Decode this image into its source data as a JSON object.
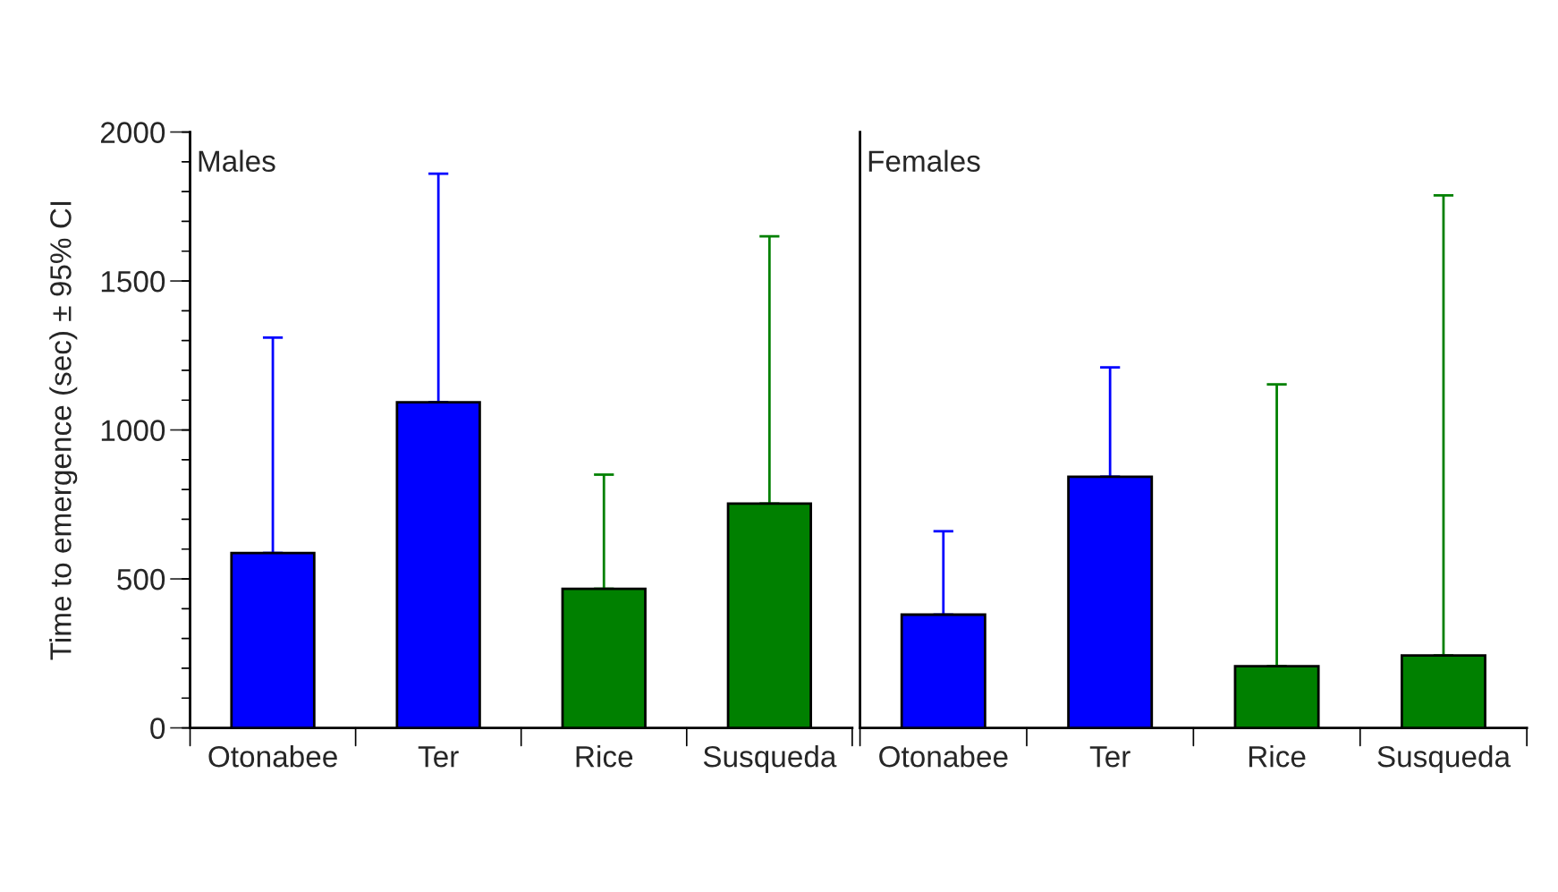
{
  "chart_data": [
    {
      "type": "bar",
      "title": "Males",
      "ylabel": "Time to emergence (sec) ± 95% CI",
      "categories": [
        "Otonabee",
        "Ter",
        "Rice",
        "Susqueda"
      ],
      "values": [
        587,
        1093,
        467,
        753
      ],
      "colors": [
        "#0000ff",
        "#0000ff",
        "#008000",
        "#008000"
      ],
      "errors": [
        [
          587,
          1310
        ],
        [
          1093,
          1860
        ],
        [
          467,
          850
        ],
        [
          753,
          1650
        ]
      ],
      "ylim": [
        0,
        2000
      ],
      "yticks": [
        0,
        500,
        1000,
        1500,
        2000
      ],
      "grid": false
    },
    {
      "type": "bar",
      "title": "Females",
      "categories": [
        "Otonabee",
        "Ter",
        "Rice",
        "Susqueda"
      ],
      "values": [
        380,
        843,
        207,
        243
      ],
      "colors": [
        "#0000ff",
        "#0000ff",
        "#008000",
        "#008000"
      ],
      "errors": [
        [
          380,
          660
        ],
        [
          843,
          1210
        ],
        [
          207,
          1153
        ],
        [
          243,
          1787
        ]
      ],
      "ylim": [
        0,
        2000
      ],
      "yticks": [
        0,
        500,
        1000,
        1500,
        2000
      ],
      "tick_labels": "x",
      "grid": false
    }
  ]
}
